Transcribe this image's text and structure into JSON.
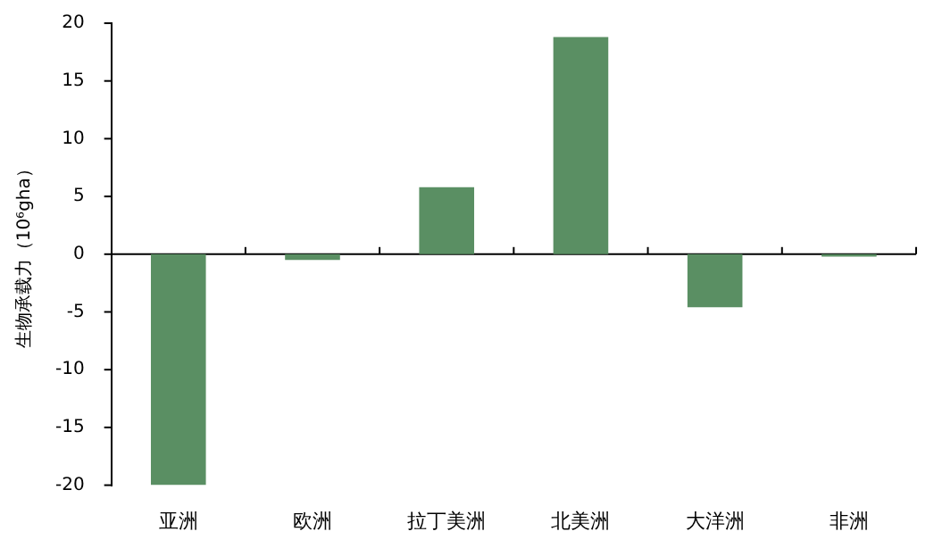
{
  "chart_data": {
    "type": "bar",
    "ylabel": "生物承载力（10⁶gha）",
    "categories": [
      "亚洲",
      "欧洲",
      "拉丁美洲",
      "北美洲",
      "大洋洲",
      "非洲"
    ],
    "values": [
      -20,
      -0.5,
      5.8,
      18.8,
      -4.6,
      -0.2
    ],
    "color": "#5a8f63",
    "ylim": [
      -20,
      20
    ],
    "yticks": [
      -20,
      -15,
      -10,
      -5,
      0,
      5,
      10,
      15,
      20
    ],
    "ref_lines": [
      {
        "axis": "y",
        "value": 0,
        "color": "#000000"
      }
    ],
    "grid": false,
    "legend": false
  }
}
